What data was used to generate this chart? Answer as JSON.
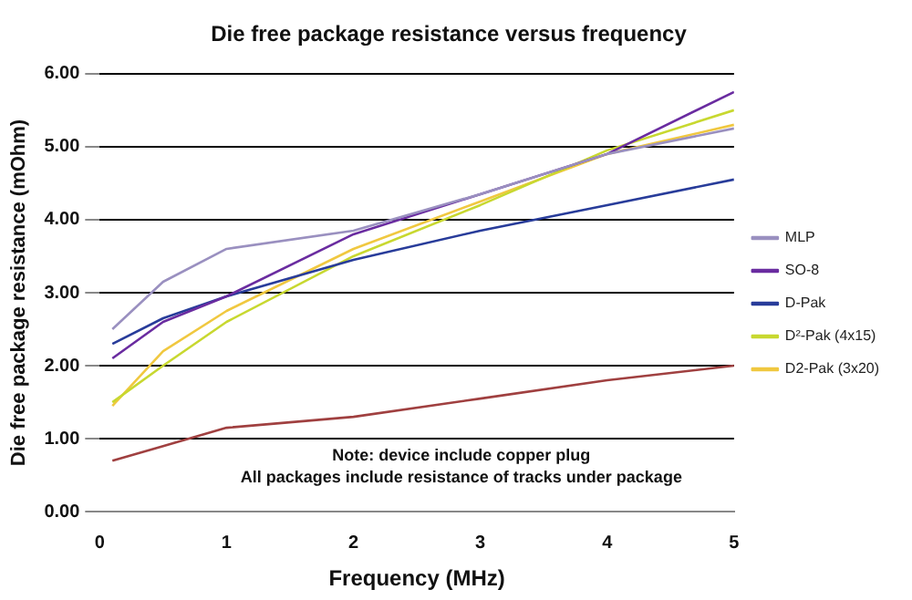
{
  "chart_data": {
    "type": "line",
    "title": "Die free package resistance versus frequency",
    "xlabel": "Frequency (MHz)",
    "ylabel": "Die free package resistance (mOhm)",
    "x": [
      0.1,
      0.5,
      1,
      2,
      3,
      4,
      5
    ],
    "series": [
      {
        "color": "#a04040",
        "values": [
          0.7,
          0.9,
          1.15,
          1.3,
          1.55,
          1.8,
          2.0
        ]
      },
      {
        "name": "MLP",
        "color": "#9a90c0",
        "values": [
          2.5,
          3.15,
          3.6,
          3.85,
          4.35,
          4.9,
          5.25
        ]
      },
      {
        "name": "SO-8",
        "color": "#6a2ca0",
        "values": [
          2.1,
          2.6,
          2.95,
          3.8,
          4.35,
          4.9,
          5.75
        ]
      },
      {
        "name": "D-Pak",
        "color": "#283c9a",
        "values": [
          2.3,
          2.65,
          2.95,
          3.45,
          3.85,
          4.2,
          4.55
        ]
      },
      {
        "name": "D²-Pak (4x15)",
        "color": "#c8d830",
        "values": [
          1.5,
          2.0,
          2.6,
          3.5,
          4.2,
          4.95,
          5.5
        ]
      },
      {
        "name": "D2-Pak (3x20)",
        "color": "#f0c840",
        "values": [
          1.45,
          2.2,
          2.75,
          3.6,
          4.25,
          4.9,
          5.3
        ]
      }
    ],
    "xlim": [
      0,
      5
    ],
    "xticks": [
      0,
      1,
      2,
      3,
      4,
      5
    ],
    "ylim": [
      0,
      6
    ],
    "yticks": [
      {
        "value": 0,
        "label": "0.00"
      },
      {
        "value": 1,
        "label": "1.00"
      },
      {
        "value": 2,
        "label": "2.00"
      },
      {
        "value": 3,
        "label": "3.00"
      },
      {
        "value": 4,
        "label": "4.00"
      },
      {
        "value": 5,
        "label": "5.00"
      },
      {
        "value": 6,
        "label": "6.00"
      }
    ],
    "grid": "y",
    "legend": "right",
    "marker": "none",
    "line_style": "solid",
    "annotations": [
      "Note: device include copper plug",
      "All packages include resistance of tracks under package"
    ]
  }
}
